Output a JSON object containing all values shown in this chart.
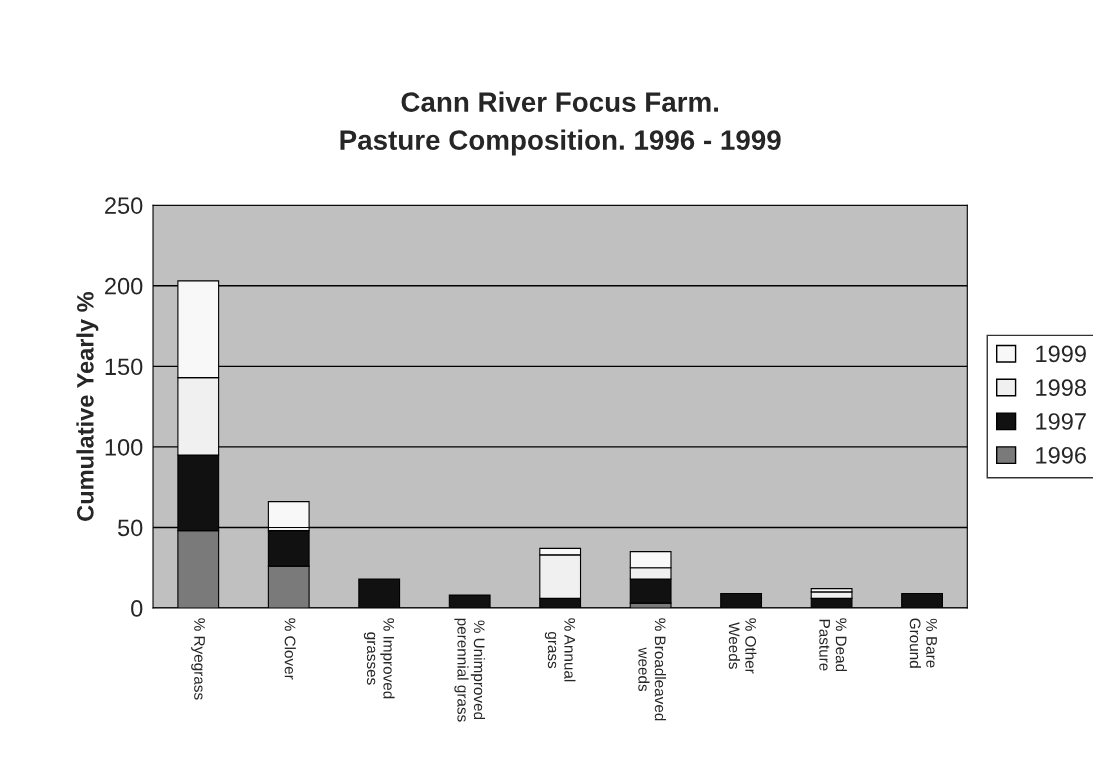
{
  "chart_data": {
    "type": "bar",
    "title": "Cann River Focus Farm.\nPasture Composition. 1996 - 1999",
    "ylabel": "Cumulative Yearly %",
    "categories": [
      "% Ryegrass",
      "% Clover",
      "% Improved\ngrasses",
      "% Unimproved\nperennial grass",
      "% Annual\ngrass",
      "% Broadleaved\nweeds",
      "% Other\nWeeds",
      "% Dead\nPasture",
      "% Bare\nGround"
    ],
    "stacked": true,
    "series": [
      {
        "name": "1996",
        "color": "#7a7a7a",
        "values": [
          48,
          26,
          0,
          0,
          0,
          3,
          0,
          0,
          0
        ]
      },
      {
        "name": "1997",
        "color": "#111111",
        "values": [
          47,
          22,
          18,
          8,
          6,
          15,
          9,
          6,
          9
        ]
      },
      {
        "name": "1998",
        "color": "#f0f0f0",
        "values": [
          48,
          2,
          0,
          0,
          27,
          7,
          0,
          4,
          0
        ]
      },
      {
        "name": "1999",
        "color": "#f8f8f8",
        "values": [
          60,
          16,
          0,
          0,
          4,
          10,
          0,
          2,
          0
        ]
      }
    ],
    "ylim": [
      0,
      250
    ],
    "yticks": [
      0,
      50,
      100,
      150,
      200,
      250
    ],
    "grid": "y",
    "legend": "right"
  }
}
